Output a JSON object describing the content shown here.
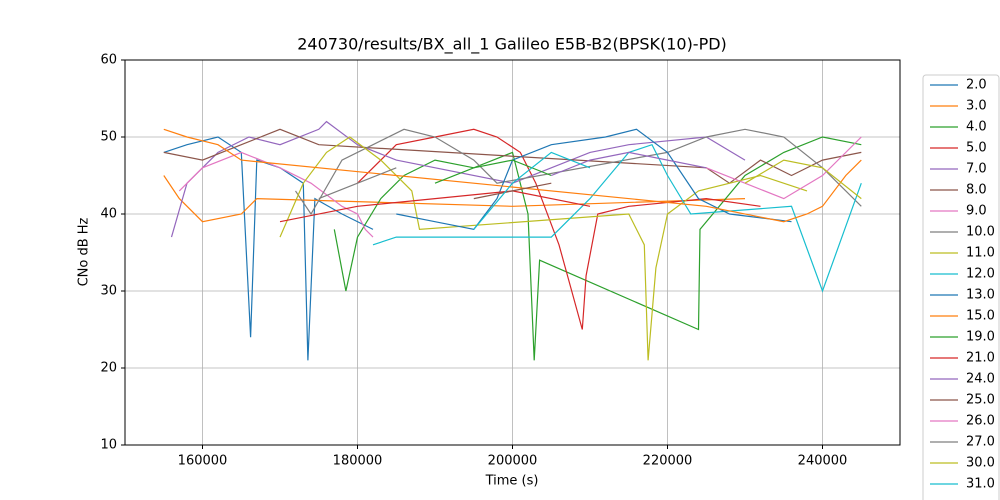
{
  "chart_data": {
    "type": "line",
    "title": "240730/results/BX_all_1 Galileo E5B-B2(BPSK(10)-PD)",
    "x_label": "Time (s)",
    "y_label": "CNo dB Hz",
    "xlim": [
      150000,
      250000
    ],
    "xticks": [
      160000,
      180000,
      200000,
      220000,
      240000
    ],
    "ylim": [
      10,
      60
    ],
    "yticks": [
      10,
      20,
      30,
      40,
      50,
      60
    ],
    "grid": true,
    "legend": "outside right",
    "series": [
      {
        "name": "2.0",
        "color": "#1f77b4",
        "x": [
          155000,
          158000,
          162000,
          165000,
          166200,
          167000,
          170000,
          173000,
          173600,
          174500,
          178000,
          182000
        ],
        "values": [
          48,
          49,
          50,
          48,
          24,
          47,
          46,
          44,
          21,
          42,
          40,
          38
        ]
      },
      {
        "name": "3.0",
        "color": "#ff7f0e",
        "x": [
          155000,
          157000,
          160000,
          165000,
          167000,
          200000,
          230000
        ],
        "values": [
          45,
          42,
          39,
          40,
          42,
          41,
          42
        ]
      },
      {
        "name": "4.0",
        "color": "#2ca02c",
        "x": [
          177000,
          178500,
          180000,
          183000,
          186000,
          190000,
          195000,
          200000,
          202000,
          202800,
          203500,
          224000,
          224200,
          230000,
          235000,
          240000,
          245000
        ],
        "values": [
          38,
          30,
          37,
          42,
          45,
          47,
          46,
          48,
          40,
          21,
          34,
          25,
          38,
          45,
          48,
          50,
          49
        ]
      },
      {
        "name": "5.0",
        "color": "#d62728",
        "x": [
          180000,
          185000,
          190000,
          195000,
          198000,
          201000,
          203000,
          206000,
          209000,
          209500,
          211000,
          215000,
          225000,
          232000
        ],
        "values": [
          44,
          49,
          50,
          51,
          50,
          48,
          44,
          36,
          25,
          32,
          40,
          41,
          42,
          41
        ]
      },
      {
        "name": "7.0",
        "color": "#9467bd",
        "x": [
          156000,
          158000,
          162000,
          166000,
          170000,
          175000,
          176000,
          180000,
          185000,
          200000,
          205000,
          210000,
          215000,
          225000,
          230000
        ],
        "values": [
          37,
          44,
          48,
          50,
          49,
          51,
          52,
          49,
          47,
          44,
          46,
          48,
          49,
          50,
          47
        ]
      },
      {
        "name": "8.0",
        "color": "#8c564b",
        "x": [
          155000,
          160000,
          165000,
          170000,
          175000,
          225000,
          228000,
          232000,
          236000,
          240000,
          245000
        ],
        "values": [
          48,
          47,
          49,
          51,
          49,
          46,
          44,
          47,
          45,
          47,
          48
        ]
      },
      {
        "name": "9.0",
        "color": "#e377c2",
        "x": [
          157000,
          160000,
          165000,
          170000,
          174000,
          178000,
          180000,
          181000,
          182000
        ],
        "values": [
          43,
          46,
          48,
          46,
          44,
          41,
          40,
          38,
          37
        ]
      },
      {
        "name": "10.0",
        "color": "#7f7f7f",
        "x": [
          172000,
          174000,
          178000,
          182000,
          186000,
          190000,
          195000,
          198000,
          220000,
          225000,
          230000,
          235000,
          240000,
          245000
        ],
        "values": [
          43,
          40,
          47,
          49,
          51,
          50,
          47,
          44,
          48,
          50,
          51,
          50,
          46,
          41
        ]
      },
      {
        "name": "11.0",
        "color": "#bcbd22",
        "x": [
          170000,
          173000,
          176000,
          179000,
          183000,
          187000,
          188000,
          215000,
          217000,
          217500,
          218500,
          220000,
          224000,
          232000,
          238000
        ],
        "values": [
          37,
          44,
          48,
          50,
          47,
          43,
          38,
          40,
          36,
          21,
          33,
          40,
          43,
          45,
          43
        ]
      },
      {
        "name": "12.0",
        "color": "#17becf",
        "x": [
          182000,
          185000,
          200000,
          205000,
          210000,
          215000,
          218000,
          220000,
          223000,
          236000,
          240000,
          245000
        ],
        "values": [
          36,
          37,
          37,
          37,
          42,
          48,
          49,
          45,
          40,
          41,
          30,
          44
        ]
      },
      {
        "name": "13.0",
        "color": "#1f77b4",
        "x": [
          185000,
          190000,
          195000,
          198000,
          200000,
          205000,
          212000,
          216000,
          220000,
          224000,
          228000,
          236000
        ],
        "values": [
          40,
          39,
          38,
          42,
          47,
          49,
          50,
          51,
          48,
          42,
          40,
          39
        ]
      },
      {
        "name": "15.0",
        "color": "#ff7f0e",
        "x": [
          155000,
          158000,
          162000,
          165000,
          225000,
          235000,
          238000,
          240000,
          243000,
          245000
        ],
        "values": [
          51,
          50,
          49,
          47,
          41,
          39,
          40,
          41,
          45,
          47
        ]
      },
      {
        "name": "19.0",
        "color": "#2ca02c",
        "x": [
          190000,
          195000,
          200000,
          205000
        ],
        "values": [
          44,
          46,
          47,
          45
        ]
      },
      {
        "name": "21.0",
        "color": "#d62728",
        "x": [
          170000,
          180000,
          190000,
          200000,
          210000
        ],
        "values": [
          39,
          41,
          42,
          43,
          41
        ]
      },
      {
        "name": "24.0",
        "color": "#9467bd",
        "x": [
          205000,
          210000,
          215000,
          220000,
          225000
        ],
        "values": [
          45,
          47,
          48,
          47,
          46
        ]
      },
      {
        "name": "25.0",
        "color": "#8c564b",
        "x": [
          195000,
          200000,
          205000
        ],
        "values": [
          42,
          43,
          44
        ]
      },
      {
        "name": "26.0",
        "color": "#e377c2",
        "x": [
          225000,
          230000,
          235000,
          240000,
          245000
        ],
        "values": [
          46,
          44,
          42,
          45,
          50
        ]
      },
      {
        "name": "27.0",
        "color": "#7f7f7f",
        "x": [
          175000,
          180000,
          185000
        ],
        "values": [
          42,
          44,
          46
        ]
      },
      {
        "name": "30.0",
        "color": "#bcbd22",
        "x": [
          230000,
          235000,
          240000,
          245000
        ],
        "values": [
          44,
          47,
          46,
          42
        ]
      },
      {
        "name": "31.0",
        "color": "#17becf",
        "x": [
          195000,
          200000,
          205000,
          210000
        ],
        "values": [
          38,
          44,
          48,
          46
        ]
      }
    ]
  }
}
